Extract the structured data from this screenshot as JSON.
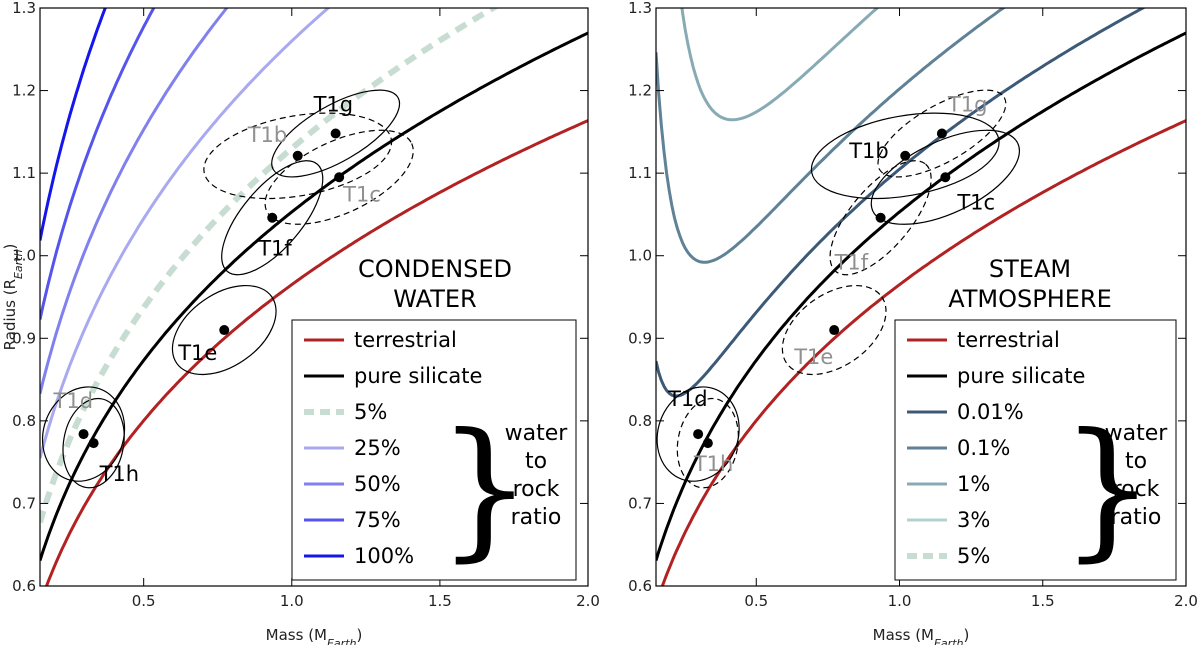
{
  "chart_data": [
    {
      "type": "line",
      "title": "CONDENSED WATER",
      "xlabel": "Mass (M",
      "xlabel_sub": "Earth",
      "ylabel": "Radius (R",
      "ylabel_sub": "Earth",
      "xlim": [
        0.15,
        2.0
      ],
      "ylim": [
        0.6,
        1.3
      ],
      "xticks": [
        "0.5",
        "1.0",
        "1.5",
        "2.0"
      ],
      "yticks": [
        "0.6",
        "0.7",
        "0.8",
        "0.9",
        "1.0",
        "1.1",
        "1.2",
        "1.3"
      ],
      "grid": false,
      "legend_position": "bottom-right",
      "brace_label": [
        "water",
        "to",
        "rock",
        "ratio"
      ],
      "series": [
        {
          "name": "terrestrial",
          "color": "#b22222",
          "style": "solid",
          "k": 0.965
        },
        {
          "name": "pure silicate",
          "color": "#000000",
          "style": "solid",
          "k": 1.053
        },
        {
          "name": "5%",
          "color": "#c8ddd2",
          "style": "dashed",
          "k": 1.13
        },
        {
          "name": "25%",
          "color": "#a9a9f0",
          "style": "solid",
          "k": 1.26
        },
        {
          "name": "50%",
          "color": "#8080ee",
          "style": "solid",
          "k": 1.39
        },
        {
          "name": "75%",
          "color": "#5555ee",
          "style": "solid",
          "k": 1.54
        },
        {
          "name": "100%",
          "color": "#1515ee",
          "style": "solid",
          "k": 1.7
        }
      ],
      "points": [
        {
          "label": "T1b",
          "mass": 1.02,
          "radius": 1.121,
          "label_color": "#909090"
        },
        {
          "label": "T1c",
          "mass": 1.16,
          "radius": 1.095,
          "label_color": "#909090"
        },
        {
          "label": "T1d",
          "mass": 0.297,
          "radius": 0.784,
          "label_color": "#909090"
        },
        {
          "label": "T1e",
          "mass": 0.772,
          "radius": 0.91,
          "label_color": "#000000"
        },
        {
          "label": "T1f",
          "mass": 0.934,
          "radius": 1.046,
          "label_color": "#000000"
        },
        {
          "label": "T1g",
          "mass": 1.148,
          "radius": 1.148,
          "label_color": "#000000"
        },
        {
          "label": "T1h",
          "mass": 0.331,
          "radius": 0.773,
          "label_color": "#000000"
        }
      ]
    },
    {
      "type": "line",
      "title": "STEAM ATMOSPHERE",
      "xlabel": "Mass (M",
      "xlabel_sub": "Earth",
      "xlim": [
        0.15,
        2.0
      ],
      "ylim": [
        0.6,
        1.3
      ],
      "xticks": [
        "0.5",
        "1.0",
        "1.5",
        "2.0"
      ],
      "yticks": [
        "0.6",
        "0.7",
        "0.8",
        "0.9",
        "1.0",
        "1.1",
        "1.2",
        "1.3"
      ],
      "grid": false,
      "legend_position": "bottom-right",
      "brace_label": [
        "water",
        "to",
        "rock",
        "ratio"
      ],
      "series": [
        {
          "name": "terrestrial",
          "color": "#b22222",
          "style": "solid",
          "k": 0.965
        },
        {
          "name": "pure silicate",
          "color": "#000000",
          "style": "solid",
          "k": 1.053
        },
        {
          "name": "0.01%",
          "color": "#3c5a78",
          "style": "solid",
          "k": 1.1
        },
        {
          "name": "0.1%",
          "color": "#5f8296",
          "style": "solid",
          "k": 1.19
        },
        {
          "name": "1%",
          "color": "#88aab4",
          "style": "solid",
          "k": 1.3
        },
        {
          "name": "3%",
          "color": "#b4d2cd",
          "style": "solid",
          "k": 1.42
        },
        {
          "name": "5%",
          "color": "#c8ddd2",
          "style": "dashed",
          "k": 1.55
        }
      ],
      "points": [
        {
          "label": "T1b",
          "mass": 1.02,
          "radius": 1.121,
          "label_color": "#000000"
        },
        {
          "label": "T1c",
          "mass": 1.16,
          "radius": 1.095,
          "label_color": "#000000"
        },
        {
          "label": "T1d",
          "mass": 0.297,
          "radius": 0.784,
          "label_color": "#000000"
        },
        {
          "label": "T1e",
          "mass": 0.772,
          "radius": 0.91,
          "label_color": "#909090"
        },
        {
          "label": "T1f",
          "mass": 0.934,
          "radius": 1.046,
          "label_color": "#909090"
        },
        {
          "label": "T1g",
          "mass": 1.148,
          "radius": 1.148,
          "label_color": "#909090"
        },
        {
          "label": "T1h",
          "mass": 0.331,
          "radius": 0.773,
          "label_color": "#909090"
        }
      ]
    }
  ]
}
